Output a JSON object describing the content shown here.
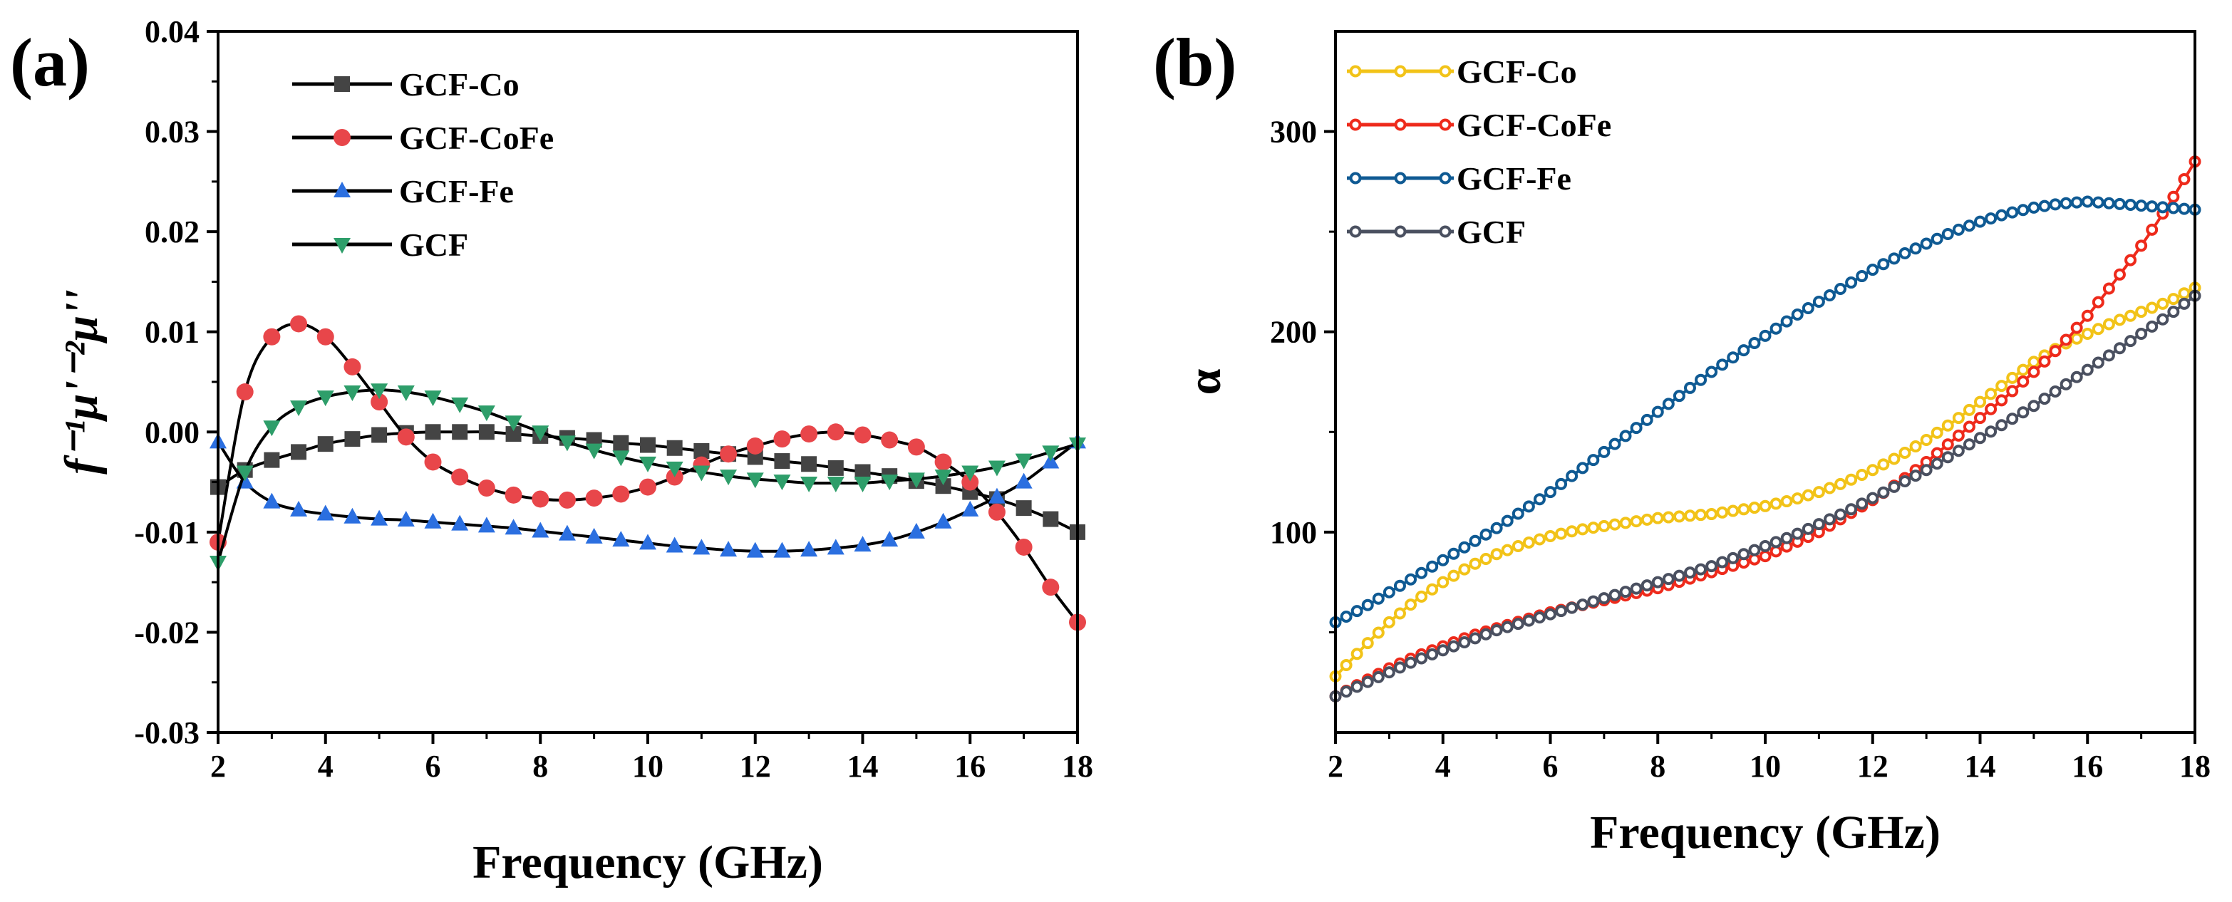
{
  "chart_data": [
    {
      "panel_label": "(a)",
      "type": "line",
      "xlabel": "Frequency (GHz)",
      "ylabel": "f⁻¹μ'⁻²μ''",
      "xlim": [
        2,
        18
      ],
      "ylim": [
        -0.03,
        0.04
      ],
      "xticks": [
        "2",
        "4",
        "6",
        "8",
        "10",
        "12",
        "14",
        "16",
        "18"
      ],
      "yticks": [
        "-0.03",
        "-0.02",
        "-0.01",
        "0.00",
        "0.01",
        "0.02",
        "0.03",
        "0.04"
      ],
      "legend_position": "top-left",
      "x": [
        2,
        2.5,
        3,
        3.5,
        4,
        4.5,
        5,
        5.5,
        6,
        6.5,
        7,
        7.5,
        8,
        8.5,
        9,
        9.5,
        10,
        10.5,
        11,
        11.5,
        12,
        12.5,
        13,
        13.5,
        14,
        14.5,
        15,
        15.5,
        16,
        16.5,
        17,
        17.5,
        18
      ],
      "series": [
        {
          "name": "GCF-Co",
          "color": "#444444",
          "marker": "square",
          "values": [
            -0.0055,
            -0.0038,
            -0.0028,
            -0.002,
            -0.0012,
            -0.0007,
            -0.0003,
            -0.0001,
            0.0,
            0.0,
            0.0,
            -0.0002,
            -0.0004,
            -0.0006,
            -0.0008,
            -0.0011,
            -0.0013,
            -0.0016,
            -0.0019,
            -0.0022,
            -0.0025,
            -0.0029,
            -0.0032,
            -0.0036,
            -0.004,
            -0.0044,
            -0.0049,
            -0.0054,
            -0.006,
            -0.0067,
            -0.0076,
            -0.0087,
            -0.01
          ]
        },
        {
          "name": "GCF-CoFe",
          "color": "#e8464a",
          "marker": "circle",
          "values": [
            -0.011,
            0.004,
            0.0095,
            0.0108,
            0.0095,
            0.0065,
            0.003,
            -0.0005,
            -0.003,
            -0.0045,
            -0.0056,
            -0.0063,
            -0.0067,
            -0.0068,
            -0.0066,
            -0.0062,
            -0.0055,
            -0.0045,
            -0.0033,
            -0.0022,
            -0.0014,
            -0.0007,
            -0.0002,
            0.0,
            -0.0003,
            -0.0008,
            -0.0015,
            -0.003,
            -0.005,
            -0.008,
            -0.0115,
            -0.0155,
            -0.019
          ]
        },
        {
          "name": "GCF-Fe",
          "color": "#2b6fe0",
          "marker": "triangle-up",
          "values": [
            -0.001,
            -0.005,
            -0.007,
            -0.0078,
            -0.0082,
            -0.0085,
            -0.0087,
            -0.0088,
            -0.009,
            -0.0092,
            -0.0094,
            -0.0096,
            -0.0099,
            -0.0102,
            -0.0105,
            -0.0108,
            -0.0111,
            -0.0114,
            -0.0116,
            -0.0118,
            -0.0119,
            -0.0119,
            -0.0118,
            -0.0116,
            -0.0113,
            -0.0108,
            -0.01,
            -0.009,
            -0.0078,
            -0.0065,
            -0.005,
            -0.003,
            -0.001
          ]
        },
        {
          "name": "GCF",
          "color": "#2e9e6a",
          "marker": "triangle-down",
          "values": [
            -0.013,
            -0.004,
            0.0005,
            0.0025,
            0.0035,
            0.004,
            0.0042,
            0.004,
            0.0035,
            0.0028,
            0.002,
            0.001,
            0.0,
            -0.001,
            -0.0018,
            -0.0025,
            -0.0031,
            -0.0036,
            -0.004,
            -0.0044,
            -0.0047,
            -0.0049,
            -0.0051,
            -0.0051,
            -0.0051,
            -0.0049,
            -0.0047,
            -0.0044,
            -0.004,
            -0.0035,
            -0.0028,
            -0.002,
            -0.0012
          ]
        }
      ]
    },
    {
      "panel_label": "(b)",
      "type": "line",
      "xlabel": "Frequency (GHz)",
      "ylabel": "α",
      "xlim": [
        2,
        18
      ],
      "ylim": [
        0,
        350
      ],
      "xticks": [
        "2",
        "4",
        "6",
        "8",
        "10",
        "12",
        "14",
        "16",
        "18"
      ],
      "yticks": [
        "100",
        "200",
        "300"
      ],
      "legend_position": "top-left",
      "x": [
        2,
        2.5,
        3,
        3.5,
        4,
        4.5,
        5,
        5.5,
        6,
        6.5,
        7,
        7.5,
        8,
        8.5,
        9,
        9.5,
        10,
        10.5,
        11,
        11.5,
        12,
        12.5,
        13,
        13.5,
        14,
        14.5,
        15,
        15.5,
        16,
        16.5,
        17,
        17.5,
        18
      ],
      "series": [
        {
          "name": "GCF-Co",
          "color": "#f2c318",
          "marker": "circle-open",
          "values": [
            28,
            42,
            55,
            66,
            75,
            83,
            89,
            94,
            98,
            101,
            103,
            105,
            107,
            108,
            109,
            111,
            113,
            116,
            120,
            125,
            131,
            138,
            146,
            155,
            165,
            175,
            185,
            193,
            199,
            205,
            210,
            215,
            222
          ]
        },
        {
          "name": "GCF-CoFe",
          "color": "#ee2a1b",
          "marker": "circle-open",
          "values": [
            18,
            25,
            32,
            38,
            43,
            48,
            52,
            56,
            60,
            63,
            66,
            69,
            72,
            76,
            80,
            84,
            88,
            94,
            100,
            108,
            116,
            125,
            135,
            146,
            157,
            168,
            180,
            193,
            208,
            225,
            243,
            263,
            285
          ]
        },
        {
          "name": "GCF-Fe",
          "color": "#0f5a93",
          "marker": "circle-open",
          "values": [
            55,
            62,
            70,
            78,
            86,
            94,
            102,
            111,
            120,
            130,
            140,
            150,
            160,
            170,
            180,
            189,
            198,
            207,
            215,
            223,
            231,
            238,
            244,
            250,
            255,
            259,
            262,
            264,
            265,
            264,
            263,
            262,
            261
          ]
        },
        {
          "name": "GCF",
          "color": "#4a5060",
          "marker": "circle-open",
          "values": [
            18,
            24,
            30,
            36,
            41,
            46,
            51,
            55,
            59,
            63,
            67,
            71,
            75,
            79,
            83,
            88,
            93,
            98,
            104,
            110,
            117,
            124,
            131,
            139,
            147,
            155,
            163,
            172,
            181,
            190,
            199,
            208,
            218
          ]
        }
      ]
    }
  ]
}
